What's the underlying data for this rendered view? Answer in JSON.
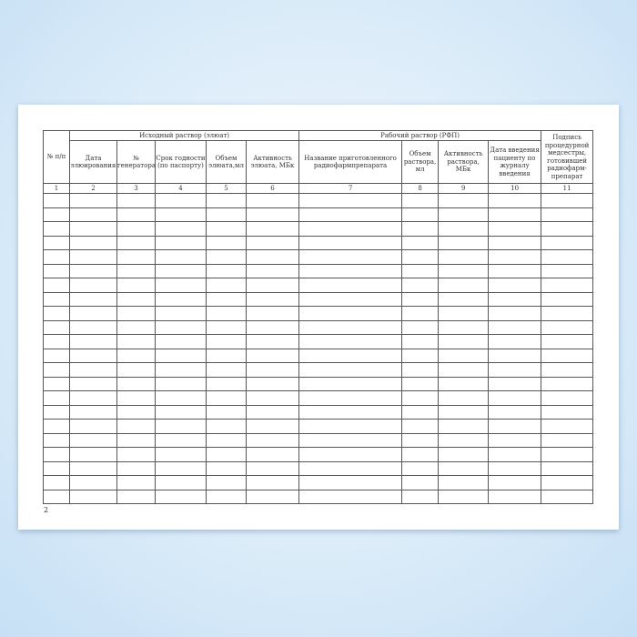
{
  "table": {
    "groups": [
      "Исходный раствор (элюат)",
      "Рабочий раствор (РФП)"
    ],
    "columns": [
      "№ п/п",
      "Дата элюирования",
      "№ генератора",
      "Срок годности (по паспорту)",
      "Объем элюата,мл",
      "Активность элюата, МБк",
      "Название приготовленного радиофармпрепарата",
      "Объем раствора, мл",
      "Активность раствора, МБк",
      "Дата введения пациенту по журналу введения",
      "Подпись процедурной медсестры, готовившей радиофарм-препарат"
    ],
    "numbers": [
      "1",
      "2",
      "3",
      "4",
      "5",
      "6",
      "7",
      "8",
      "9",
      "10",
      "11"
    ],
    "empty_rows": 22
  },
  "page_number": "2"
}
